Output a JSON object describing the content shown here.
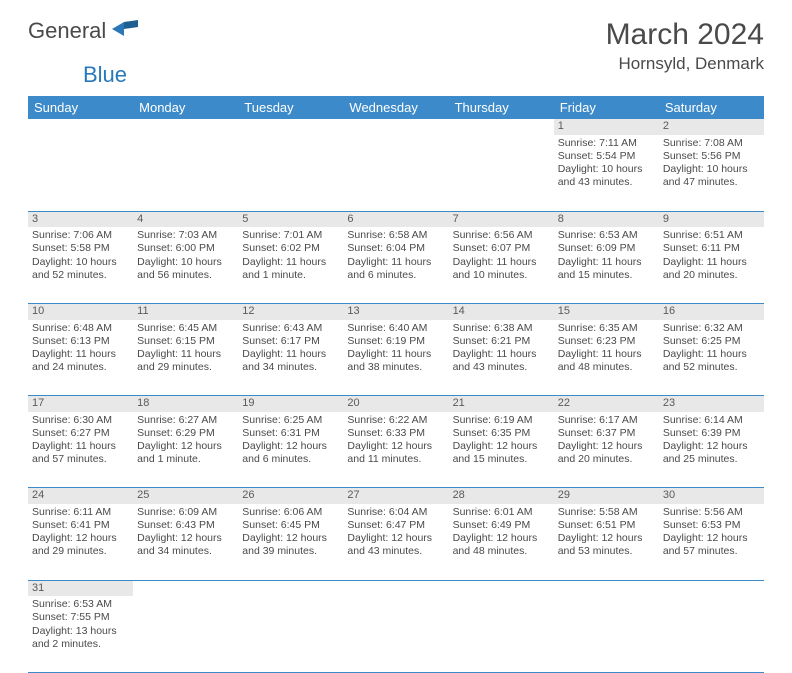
{
  "logo": {
    "part1": "General",
    "part2": "Blue"
  },
  "title": "March 2024",
  "location": "Hornsyld, Denmark",
  "weekday_headers": [
    "Sunday",
    "Monday",
    "Tuesday",
    "Wednesday",
    "Thursday",
    "Friday",
    "Saturday"
  ],
  "colors": {
    "header_bg": "#3c8ac9",
    "header_fg": "#ffffff",
    "daynum_bg": "#e8e8e8",
    "text": "#4a4a4a",
    "rule": "#3c8ac9",
    "logo_accent": "#2a78b8"
  },
  "leading_blanks": 5,
  "days": [
    {
      "n": 1,
      "sr": "7:11 AM",
      "ss": "5:54 PM",
      "dl": "10 hours and 43 minutes."
    },
    {
      "n": 2,
      "sr": "7:08 AM",
      "ss": "5:56 PM",
      "dl": "10 hours and 47 minutes."
    },
    {
      "n": 3,
      "sr": "7:06 AM",
      "ss": "5:58 PM",
      "dl": "10 hours and 52 minutes."
    },
    {
      "n": 4,
      "sr": "7:03 AM",
      "ss": "6:00 PM",
      "dl": "10 hours and 56 minutes."
    },
    {
      "n": 5,
      "sr": "7:01 AM",
      "ss": "6:02 PM",
      "dl": "11 hours and 1 minute."
    },
    {
      "n": 6,
      "sr": "6:58 AM",
      "ss": "6:04 PM",
      "dl": "11 hours and 6 minutes."
    },
    {
      "n": 7,
      "sr": "6:56 AM",
      "ss": "6:07 PM",
      "dl": "11 hours and 10 minutes."
    },
    {
      "n": 8,
      "sr": "6:53 AM",
      "ss": "6:09 PM",
      "dl": "11 hours and 15 minutes."
    },
    {
      "n": 9,
      "sr": "6:51 AM",
      "ss": "6:11 PM",
      "dl": "11 hours and 20 minutes."
    },
    {
      "n": 10,
      "sr": "6:48 AM",
      "ss": "6:13 PM",
      "dl": "11 hours and 24 minutes."
    },
    {
      "n": 11,
      "sr": "6:45 AM",
      "ss": "6:15 PM",
      "dl": "11 hours and 29 minutes."
    },
    {
      "n": 12,
      "sr": "6:43 AM",
      "ss": "6:17 PM",
      "dl": "11 hours and 34 minutes."
    },
    {
      "n": 13,
      "sr": "6:40 AM",
      "ss": "6:19 PM",
      "dl": "11 hours and 38 minutes."
    },
    {
      "n": 14,
      "sr": "6:38 AM",
      "ss": "6:21 PM",
      "dl": "11 hours and 43 minutes."
    },
    {
      "n": 15,
      "sr": "6:35 AM",
      "ss": "6:23 PM",
      "dl": "11 hours and 48 minutes."
    },
    {
      "n": 16,
      "sr": "6:32 AM",
      "ss": "6:25 PM",
      "dl": "11 hours and 52 minutes."
    },
    {
      "n": 17,
      "sr": "6:30 AM",
      "ss": "6:27 PM",
      "dl": "11 hours and 57 minutes."
    },
    {
      "n": 18,
      "sr": "6:27 AM",
      "ss": "6:29 PM",
      "dl": "12 hours and 1 minute."
    },
    {
      "n": 19,
      "sr": "6:25 AM",
      "ss": "6:31 PM",
      "dl": "12 hours and 6 minutes."
    },
    {
      "n": 20,
      "sr": "6:22 AM",
      "ss": "6:33 PM",
      "dl": "12 hours and 11 minutes."
    },
    {
      "n": 21,
      "sr": "6:19 AM",
      "ss": "6:35 PM",
      "dl": "12 hours and 15 minutes."
    },
    {
      "n": 22,
      "sr": "6:17 AM",
      "ss": "6:37 PM",
      "dl": "12 hours and 20 minutes."
    },
    {
      "n": 23,
      "sr": "6:14 AM",
      "ss": "6:39 PM",
      "dl": "12 hours and 25 minutes."
    },
    {
      "n": 24,
      "sr": "6:11 AM",
      "ss": "6:41 PM",
      "dl": "12 hours and 29 minutes."
    },
    {
      "n": 25,
      "sr": "6:09 AM",
      "ss": "6:43 PM",
      "dl": "12 hours and 34 minutes."
    },
    {
      "n": 26,
      "sr": "6:06 AM",
      "ss": "6:45 PM",
      "dl": "12 hours and 39 minutes."
    },
    {
      "n": 27,
      "sr": "6:04 AM",
      "ss": "6:47 PM",
      "dl": "12 hours and 43 minutes."
    },
    {
      "n": 28,
      "sr": "6:01 AM",
      "ss": "6:49 PM",
      "dl": "12 hours and 48 minutes."
    },
    {
      "n": 29,
      "sr": "5:58 AM",
      "ss": "6:51 PM",
      "dl": "12 hours and 53 minutes."
    },
    {
      "n": 30,
      "sr": "5:56 AM",
      "ss": "6:53 PM",
      "dl": "12 hours and 57 minutes."
    },
    {
      "n": 31,
      "sr": "6:53 AM",
      "ss": "7:55 PM",
      "dl": "13 hours and 2 minutes."
    }
  ],
  "labels": {
    "sunrise": "Sunrise:",
    "sunset": "Sunset:",
    "daylight": "Daylight:"
  }
}
